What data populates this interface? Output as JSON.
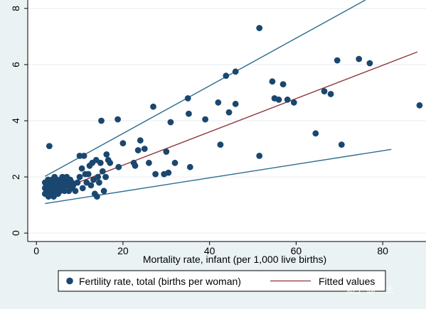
{
  "chart_data": {
    "type": "scatter",
    "xlabel": "Mortality rate, infant (per 1,000 live births)",
    "ylabel": "",
    "xlim": [
      -2,
      90
    ],
    "ylim": [
      -0.3,
      8.3
    ],
    "xticks": [
      0,
      20,
      40,
      60,
      80
    ],
    "yticks": [
      0,
      2,
      4,
      6,
      8
    ],
    "grid": "horizontal",
    "legend_position": "bottom",
    "series": [
      {
        "name": "Fertility rate, total (births per woman)",
        "kind": "scatter",
        "color": "#1a476f",
        "points": [
          [
            2,
            1.8
          ],
          [
            2,
            1.6
          ],
          [
            2,
            1.4
          ],
          [
            2.3,
            1.7
          ],
          [
            2.5,
            1.5
          ],
          [
            2.7,
            1.9
          ],
          [
            2.8,
            1.3
          ],
          [
            3,
            1.6
          ],
          [
            3,
            1.8
          ],
          [
            3,
            3.1
          ],
          [
            3.2,
            1.5
          ],
          [
            3.4,
            1.7
          ],
          [
            3.5,
            1.4
          ],
          [
            3.6,
            1.9
          ],
          [
            3.8,
            1.6
          ],
          [
            4,
            1.8
          ],
          [
            4,
            1.3
          ],
          [
            4.2,
            2.0
          ],
          [
            4.4,
            1.5
          ],
          [
            4.6,
            1.7
          ],
          [
            4.8,
            1.9
          ],
          [
            5,
            1.4
          ],
          [
            5,
            1.6
          ],
          [
            5.2,
            1.8
          ],
          [
            5.5,
            1.5
          ],
          [
            5.7,
            1.7
          ],
          [
            6,
            1.9
          ],
          [
            6,
            2.0
          ],
          [
            6.3,
            1.6
          ],
          [
            6.5,
            1.5
          ],
          [
            6.8,
            1.8
          ],
          [
            7,
            2.0
          ],
          [
            7.2,
            1.7
          ],
          [
            7.5,
            1.5
          ],
          [
            7.8,
            1.9
          ],
          [
            8,
            1.6
          ],
          [
            8.2,
            1.8
          ],
          [
            8.5,
            1.7
          ],
          [
            9,
            1.5
          ],
          [
            9.5,
            1.8
          ],
          [
            10,
            2.0
          ],
          [
            10,
            2.75
          ],
          [
            10.5,
            2.3
          ],
          [
            10.7,
            1.6
          ],
          [
            11,
            2.75
          ],
          [
            11.3,
            2.1
          ],
          [
            11.6,
            1.8
          ],
          [
            12,
            2.1
          ],
          [
            12.3,
            2.4
          ],
          [
            12.6,
            1.7
          ],
          [
            12.9,
            2.5
          ],
          [
            13.2,
            1.9
          ],
          [
            13.5,
            1.4
          ],
          [
            13.8,
            2.6
          ],
          [
            14,
            1.3
          ],
          [
            14.2,
            2.0
          ],
          [
            14.5,
            1.8
          ],
          [
            14.8,
            2.5
          ],
          [
            15,
            4.0
          ],
          [
            15.3,
            2.2
          ],
          [
            15.6,
            1.5
          ],
          [
            16,
            2.0
          ],
          [
            16.2,
            2.8
          ],
          [
            16.6,
            2.6
          ],
          [
            17,
            2.5
          ],
          [
            18.8,
            4.05
          ],
          [
            19,
            2.35
          ],
          [
            20,
            3.2
          ],
          [
            22.5,
            2.5
          ],
          [
            22.8,
            2.4
          ],
          [
            23.5,
            2.95
          ],
          [
            24,
            3.3
          ],
          [
            25,
            3.0
          ],
          [
            26,
            2.5
          ],
          [
            27,
            4.5
          ],
          [
            27.5,
            2.1
          ],
          [
            29.5,
            2.1
          ],
          [
            30,
            2.9
          ],
          [
            30.5,
            2.15
          ],
          [
            31,
            3.95
          ],
          [
            32,
            2.5
          ],
          [
            35,
            4.8
          ],
          [
            35.2,
            4.25
          ],
          [
            35.5,
            2.35
          ],
          [
            39,
            4.05
          ],
          [
            42,
            4.65
          ],
          [
            42.5,
            3.15
          ],
          [
            43.8,
            5.6
          ],
          [
            44.5,
            4.3
          ],
          [
            46,
            5.75
          ],
          [
            46,
            4.6
          ],
          [
            51.5,
            7.3
          ],
          [
            51.5,
            2.75
          ],
          [
            54.5,
            5.4
          ],
          [
            55,
            4.8
          ],
          [
            56,
            4.75
          ],
          [
            57,
            5.3
          ],
          [
            58,
            4.75
          ],
          [
            59.5,
            4.65
          ],
          [
            64.5,
            3.55
          ],
          [
            66.5,
            5.05
          ],
          [
            68,
            4.95
          ],
          [
            69.5,
            6.15
          ],
          [
            70.5,
            3.15
          ],
          [
            74.5,
            6.2
          ],
          [
            77,
            6.05
          ],
          [
            88.5,
            4.55
          ]
        ]
      },
      {
        "name": "Fitted values",
        "kind": "line",
        "color": "#90353b",
        "points": [
          [
            2,
            1.35
          ],
          [
            88,
            6.45
          ]
        ]
      },
      {
        "name": "",
        "kind": "line",
        "color": "#2d6d8e",
        "legend": false,
        "points": [
          [
            2,
            2.02
          ],
          [
            76,
            8.3
          ]
        ]
      },
      {
        "name": "",
        "kind": "line",
        "color": "#2d6d8e",
        "legend": false,
        "points": [
          [
            2,
            1.05
          ],
          [
            82,
            2.98
          ]
        ]
      }
    ]
  },
  "watermark": "知乎 @三土",
  "colors": {
    "page_bg": "#eaf2f3",
    "plot_bg": "#ffffff",
    "grid": "#e6eef0",
    "axis": "#000000"
  }
}
